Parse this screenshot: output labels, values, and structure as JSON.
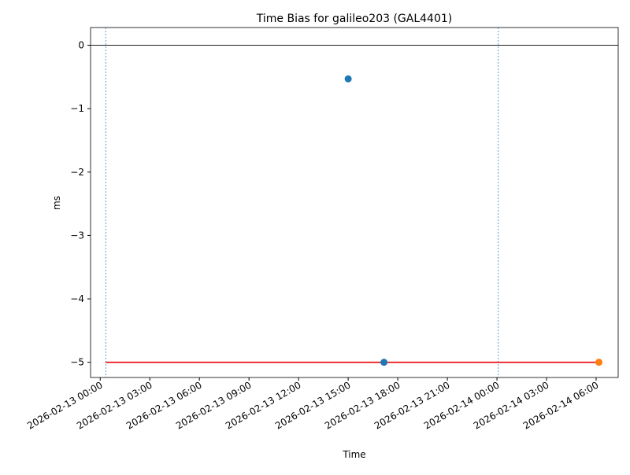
{
  "chart_data": {
    "type": "scatter",
    "title": "Time Bias for galileo203 (GAL4401)",
    "xlabel": "Time",
    "ylabel": "ms",
    "xlim": [
      "2026-02-12 23:25",
      "2026-02-14 07:20"
    ],
    "ylim": [
      -5.24,
      0.28
    ],
    "xticks": [
      "2026-02-13 00:00",
      "2026-02-13 03:00",
      "2026-02-13 06:00",
      "2026-02-13 09:00",
      "2026-02-13 12:00",
      "2026-02-13 15:00",
      "2026-02-13 18:00",
      "2026-02-13 21:00",
      "2026-02-14 00:00",
      "2026-02-14 03:00",
      "2026-02-14 06:00"
    ],
    "yticks": [
      {
        "value": 0,
        "label": "0"
      },
      {
        "value": -1,
        "label": "−1"
      },
      {
        "value": -2,
        "label": "−2"
      },
      {
        "value": -3,
        "label": "−3"
      },
      {
        "value": -4,
        "label": "−4"
      },
      {
        "value": -5,
        "label": "−5"
      }
    ],
    "hline": {
      "value": 0,
      "color": "#000000"
    },
    "vlines": {
      "x": [
        "2026-02-13 00:20",
        "2026-02-14 00:05"
      ],
      "color": "#1f77b4"
    },
    "threshold": {
      "x": [
        "2026-02-13 00:20",
        "2026-02-14 06:10"
      ],
      "values": [
        -5,
        -5
      ],
      "color": "#e8000b"
    },
    "series": [
      {
        "color": "#1f77b4",
        "x": [
          "2026-02-13 15:00",
          "2026-02-13 17:10"
        ],
        "values": [
          -0.53,
          -5
        ]
      },
      {
        "color": "#ff7f0e",
        "x": [
          "2026-02-14 06:10"
        ],
        "values": [
          -5
        ]
      }
    ]
  }
}
